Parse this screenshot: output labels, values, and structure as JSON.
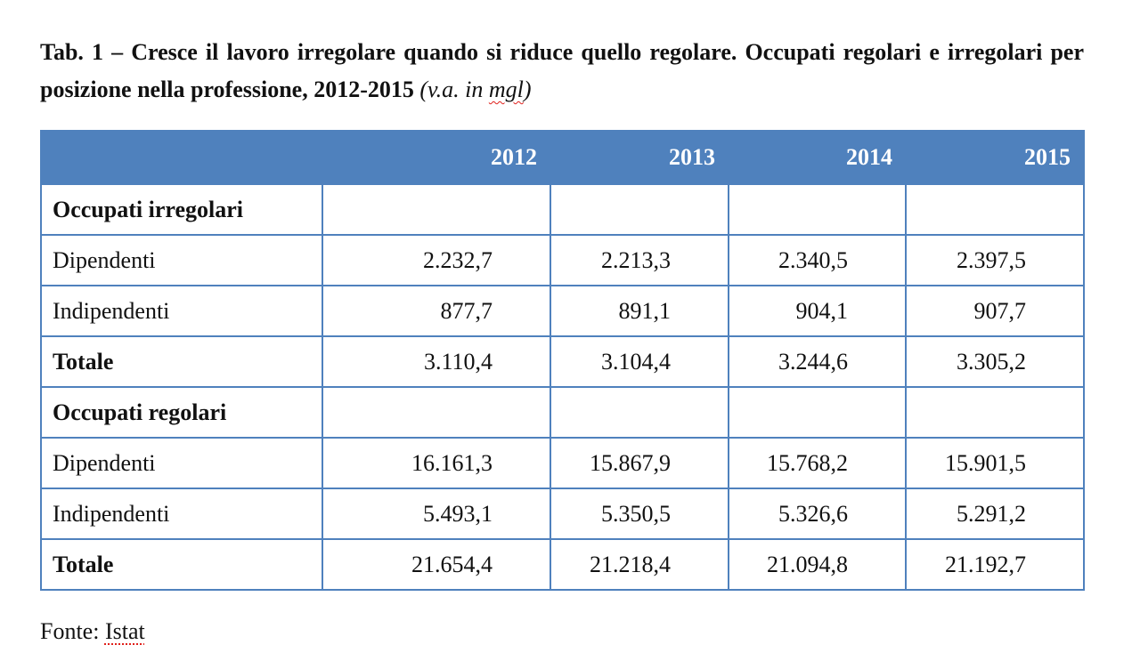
{
  "caption": {
    "main": "Tab. 1 – Cresce il lavoro irregolare quando si riduce quello regolare. Occupati regolari e irregolari per posizione nella professione, 2012-2015",
    "unit_prefix": "(v.a. in ",
    "unit_word": "mgl",
    "unit_suffix": ")"
  },
  "table": {
    "headers": [
      "",
      "2012",
      "2013",
      "2014",
      "2015"
    ],
    "rows": [
      {
        "label": "Occupati irregolari",
        "values": [
          "",
          "",
          "",
          ""
        ],
        "style": "section"
      },
      {
        "label": "Dipendenti",
        "values": [
          "2.232,7",
          "2.213,3",
          "2.340,5",
          "2.397,5"
        ],
        "style": "normal"
      },
      {
        "label": "Indipendenti",
        "values": [
          "877,7",
          "891,1",
          "904,1",
          "907,7"
        ],
        "style": "normal"
      },
      {
        "label": "Totale",
        "values": [
          "3.110,4",
          "3.104,4",
          "3.244,6",
          "3.305,2"
        ],
        "style": "bold"
      },
      {
        "label": "Occupati regolari",
        "values": [
          "",
          "",
          "",
          ""
        ],
        "style": "section"
      },
      {
        "label": "Dipendenti",
        "values": [
          "16.161,3",
          "15.867,9",
          "15.768,2",
          "15.901,5"
        ],
        "style": "normal"
      },
      {
        "label": "Indipendenti",
        "values": [
          "5.493,1",
          "5.350,5",
          "5.326,6",
          "5.291,2"
        ],
        "style": "normal"
      },
      {
        "label": "Totale",
        "values": [
          "21.654,4",
          "21.218,4",
          "21.094,8",
          "21.192,7"
        ],
        "style": "bold"
      }
    ]
  },
  "source": {
    "prefix": "Fonte: ",
    "name": "Istat"
  },
  "colors": {
    "header_fill": "#4f81bd",
    "border": "#4f81bd",
    "header_text": "#ffffff",
    "spellcheck_underline": "#e0201b"
  }
}
